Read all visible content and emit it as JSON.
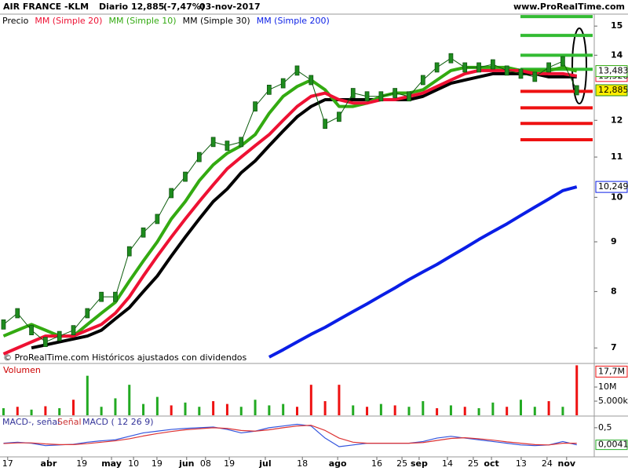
{
  "chart_data": {
    "type": "line",
    "title": "AIR FRANCE -KLM",
    "period": "Diario",
    "last_price": "12,885",
    "change": "(-7,47%)",
    "date": "03-nov-2017",
    "source": "www.ProRealTime.com",
    "watermark": "© ProRealTime.com  Históricos ajustados con dividendos",
    "log_scale": true,
    "grid": false,
    "xlim": [
      0,
      170
    ],
    "xticks": [
      {
        "value": 2.2,
        "label": "17"
      },
      {
        "value": 13.9,
        "label": "abr"
      },
      {
        "value": 23.4,
        "label": "19"
      },
      {
        "value": 31.9,
        "label": "may"
      },
      {
        "value": 38.2,
        "label": "10"
      },
      {
        "value": 44.9,
        "label": "19"
      },
      {
        "value": 53.4,
        "label": "jun"
      },
      {
        "value": 58.8,
        "label": "08"
      },
      {
        "value": 65.6,
        "label": "19"
      },
      {
        "value": 75.9,
        "label": "jul"
      },
      {
        "value": 86.5,
        "label": "18"
      },
      {
        "value": 96.6,
        "label": "ago"
      },
      {
        "value": 107.8,
        "label": "16"
      },
      {
        "value": 115,
        "label": "25"
      },
      {
        "value": 119.9,
        "label": "sep"
      },
      {
        "value": 128,
        "label": "14"
      },
      {
        "value": 135.4,
        "label": "25"
      },
      {
        "value": 140.6,
        "label": "oct"
      },
      {
        "value": 149.1,
        "label": "13"
      },
      {
        "value": 156.5,
        "label": "24"
      },
      {
        "value": 162.1,
        "label": "nov"
      }
    ],
    "ylim": [
      6.76,
      15.43
    ],
    "yticks": [
      7,
      8,
      9,
      10,
      11,
      12,
      14,
      15
    ],
    "x": [
      1,
      5,
      9,
      13,
      17,
      21,
      25,
      29,
      33,
      37,
      41,
      45,
      49,
      53,
      57,
      61,
      65,
      69,
      73,
      77,
      81,
      85,
      89,
      93,
      97,
      101,
      105,
      109,
      113,
      117,
      121,
      125,
      129,
      133,
      137,
      141,
      145,
      149,
      153,
      157,
      161,
      165
    ],
    "series": [
      {
        "name": "Precio",
        "color": "#1e8c1e",
        "values": [
          7.4,
          7.6,
          7.3,
          7.1,
          7.2,
          7.3,
          7.6,
          7.9,
          7.9,
          8.8,
          9.2,
          9.5,
          10.1,
          10.5,
          11.0,
          11.4,
          11.3,
          11.4,
          12.4,
          12.9,
          13.1,
          13.5,
          13.2,
          11.9,
          12.1,
          12.8,
          12.7,
          12.7,
          12.8,
          12.7,
          13.2,
          13.6,
          13.9,
          13.6,
          13.6,
          13.7,
          13.5,
          13.4,
          13.3,
          13.6,
          13.8,
          12.885
        ],
        "last_label": "12,885"
      },
      {
        "name": "MM (Simple 20)",
        "color": "#ee1133",
        "values": [
          6.9,
          7.0,
          7.1,
          7.2,
          7.2,
          7.2,
          7.3,
          7.4,
          7.6,
          7.9,
          8.3,
          8.7,
          9.1,
          9.5,
          9.9,
          10.3,
          10.7,
          11.0,
          11.3,
          11.6,
          12.0,
          12.4,
          12.7,
          12.8,
          12.6,
          12.5,
          12.5,
          12.6,
          12.6,
          12.7,
          12.8,
          13.0,
          13.2,
          13.4,
          13.5,
          13.5,
          13.5,
          13.5,
          13.4,
          13.4,
          13.4,
          13.328
        ],
        "last_label": "13,328"
      },
      {
        "name": "MM (Simple 10)",
        "color": "#33aa11",
        "values": [
          7.2,
          7.3,
          7.4,
          7.3,
          7.2,
          7.2,
          7.4,
          7.6,
          7.8,
          8.2,
          8.6,
          9.0,
          9.5,
          9.9,
          10.4,
          10.8,
          11.1,
          11.3,
          11.6,
          12.2,
          12.7,
          13.0,
          13.2,
          12.9,
          12.4,
          12.4,
          12.5,
          12.7,
          12.8,
          12.8,
          12.9,
          13.2,
          13.5,
          13.6,
          13.6,
          13.6,
          13.6,
          13.5,
          13.5,
          13.5,
          13.6,
          13.483
        ],
        "last_label": "13,483"
      },
      {
        "name": "MM (Simple 30)",
        "color": "#000000",
        "values": [
          null,
          null,
          7.0,
          7.05,
          7.1,
          7.15,
          7.2,
          7.3,
          7.5,
          7.7,
          8.0,
          8.3,
          8.7,
          9.1,
          9.5,
          9.9,
          10.2,
          10.6,
          10.9,
          11.3,
          11.7,
          12.1,
          12.4,
          12.6,
          12.6,
          12.6,
          12.6,
          12.6,
          12.6,
          12.6,
          12.7,
          12.9,
          13.1,
          13.2,
          13.3,
          13.4,
          13.4,
          13.4,
          13.4,
          13.3,
          13.3,
          13.3
        ]
      },
      {
        "name": "MM (Simple 200)",
        "color": "#0a1ee6",
        "values": [
          null,
          null,
          null,
          null,
          null,
          null,
          null,
          null,
          null,
          null,
          null,
          null,
          null,
          null,
          null,
          null,
          null,
          null,
          null,
          6.85,
          6.97,
          7.1,
          7.23,
          7.35,
          7.49,
          7.63,
          7.77,
          7.92,
          8.07,
          8.23,
          8.38,
          8.53,
          8.7,
          8.87,
          9.05,
          9.22,
          9.39,
          9.58,
          9.77,
          9.96,
          10.16,
          10.249
        ],
        "last_label": "10,249"
      }
    ],
    "levels": [
      {
        "value": 15.34,
        "color": "#33bb33"
      },
      {
        "value": 14.67,
        "color": "#33bb33"
      },
      {
        "value": 14.0,
        "color": "#33bb33"
      },
      {
        "value": 13.54,
        "color": "#33bb33"
      },
      {
        "value": 12.85,
        "color": "#ee1111"
      },
      {
        "value": 12.36,
        "color": "#ee1111"
      },
      {
        "value": 11.91,
        "color": "#ee1111"
      },
      {
        "value": 11.46,
        "color": "#ee1111"
      }
    ],
    "volume": {
      "name": "Volumen",
      "ylim": [
        0,
        17.8
      ],
      "yticks": [
        {
          "value": 5,
          "label": "5.000k"
        },
        {
          "value": 10,
          "label": "10M"
        }
      ],
      "values": [
        2.5,
        3.0,
        2.0,
        3.2,
        2.5,
        5.5,
        14.0,
        3.0,
        6.0,
        10.8,
        4.0,
        6.5,
        3.5,
        4.5,
        3.0,
        5.0,
        4.0,
        3.0,
        5.5,
        3.5,
        4.0,
        3.0,
        10.8,
        5.0,
        10.8,
        3.5,
        3.0,
        4.0,
        3.5,
        3.0,
        5.0,
        2.5,
        3.5,
        3.0,
        2.5,
        4.5,
        3.0,
        5.5,
        3.0,
        5.0,
        3.0,
        17.7
      ],
      "colors": [
        "#22aa22",
        "#ee1111",
        "#22aa22",
        "#ee1111",
        "#22aa22",
        "#ee1111",
        "#22aa22",
        "#22aa22",
        "#22aa22",
        "#22aa22",
        "#22aa22",
        "#22aa22",
        "#ee1111",
        "#22aa22",
        "#22aa22",
        "#ee1111",
        "#ee1111",
        "#22aa22",
        "#22aa22",
        "#22aa22",
        "#22aa22",
        "#ee1111",
        "#ee1111",
        "#ee1111",
        "#ee1111",
        "#22aa22",
        "#ee1111",
        "#22aa22",
        "#ee1111",
        "#22aa22",
        "#22aa22",
        "#ee1111",
        "#22aa22",
        "#ee1111",
        "#22aa22",
        "#22aa22",
        "#ee1111",
        "#22aa22",
        "#22aa22",
        "#ee1111",
        "#22aa22",
        "#ee1111"
      ],
      "last_label": "17,7M"
    },
    "macd": {
      "title": "MACD-, señal",
      "signal_title": "Señal",
      "macd_title": "MACD ( 12 26 9)",
      "ylim": [
        -0.3,
        0.77
      ],
      "yticks": [
        {
          "value": 0.5,
          "label": "0,5"
        }
      ],
      "series": [
        {
          "name": "MACD",
          "color": "#3355dd",
          "values": [
            0.05,
            0.08,
            0.05,
            -0.02,
            0.0,
            0.02,
            0.08,
            0.12,
            0.15,
            0.25,
            0.35,
            0.4,
            0.45,
            0.48,
            0.5,
            0.52,
            0.45,
            0.35,
            0.4,
            0.5,
            0.55,
            0.6,
            0.55,
            0.2,
            -0.05,
            0.0,
            0.05,
            0.05,
            0.05,
            0.05,
            0.1,
            0.2,
            0.25,
            0.2,
            0.15,
            0.1,
            0.05,
            0.0,
            -0.02,
            0.0,
            0.1,
            0.0041
          ],
          "last_label": "0,0041"
        },
        {
          "name": "Señal",
          "color": "#dd3333",
          "values": [
            0.04,
            0.06,
            0.06,
            0.03,
            0.01,
            0.01,
            0.04,
            0.08,
            0.12,
            0.18,
            0.26,
            0.33,
            0.39,
            0.44,
            0.47,
            0.5,
            0.48,
            0.42,
            0.4,
            0.44,
            0.5,
            0.55,
            0.57,
            0.42,
            0.2,
            0.08,
            0.05,
            0.05,
            0.05,
            0.05,
            0.07,
            0.13,
            0.19,
            0.21,
            0.18,
            0.14,
            0.09,
            0.05,
            0.01,
            0.0,
            0.05,
            0.05
          ]
        }
      ]
    }
  }
}
